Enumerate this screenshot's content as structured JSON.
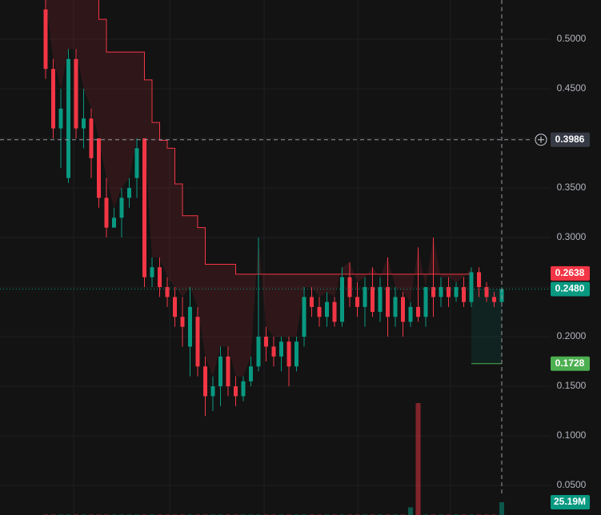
{
  "chart_data": {
    "type": "candlestick",
    "ylim": [
      0.0202,
      0.5395
    ],
    "yticks": [
      {
        "value": 0.05,
        "label": "0.0500"
      },
      {
        "value": 0.1,
        "label": "0.1000"
      },
      {
        "value": 0.15,
        "label": "0.1500"
      },
      {
        "value": 0.2,
        "label": "0.2000"
      },
      {
        "value": 0.25,
        "label": "0.2500"
      },
      {
        "value": 0.3,
        "label": "0.3000"
      },
      {
        "value": 0.35,
        "label": "0.3500"
      },
      {
        "value": 0.4,
        "label": "0.4000"
      },
      {
        "value": 0.45,
        "label": "0.4500"
      },
      {
        "value": 0.5,
        "label": "0.5000"
      }
    ],
    "grid": true,
    "up_color": "#089981",
    "down_color": "#f23645",
    "ohlc": [
      [
        0.53,
        0.54,
        0.46,
        0.47
      ],
      [
        0.47,
        0.48,
        0.4,
        0.41
      ],
      [
        0.41,
        0.45,
        0.37,
        0.43
      ],
      [
        0.36,
        0.49,
        0.355,
        0.48
      ],
      [
        0.48,
        0.49,
        0.4,
        0.41
      ],
      [
        0.41,
        0.45,
        0.39,
        0.42
      ],
      [
        0.42,
        0.43,
        0.36,
        0.38
      ],
      [
        0.4,
        0.4,
        0.33,
        0.34
      ],
      [
        0.34,
        0.36,
        0.3,
        0.31
      ],
      [
        0.31,
        0.33,
        0.31,
        0.32
      ],
      [
        0.32,
        0.35,
        0.3,
        0.34
      ],
      [
        0.34,
        0.36,
        0.33,
        0.35
      ],
      [
        0.36,
        0.4,
        0.34,
        0.39
      ],
      [
        0.4,
        0.4,
        0.25,
        0.26
      ],
      [
        0.26,
        0.28,
        0.25,
        0.27
      ],
      [
        0.27,
        0.28,
        0.24,
        0.25
      ],
      [
        0.25,
        0.26,
        0.23,
        0.24
      ],
      [
        0.24,
        0.25,
        0.21,
        0.22
      ],
      [
        0.22,
        0.24,
        0.19,
        0.21
      ],
      [
        0.19,
        0.25,
        0.16,
        0.23
      ],
      [
        0.22,
        0.23,
        0.16,
        0.17
      ],
      [
        0.17,
        0.18,
        0.12,
        0.14
      ],
      [
        0.14,
        0.16,
        0.125,
        0.15
      ],
      [
        0.15,
        0.19,
        0.13,
        0.18
      ],
      [
        0.18,
        0.19,
        0.14,
        0.15
      ],
      [
        0.15,
        0.16,
        0.13,
        0.14
      ],
      [
        0.14,
        0.16,
        0.135,
        0.155
      ],
      [
        0.155,
        0.18,
        0.15,
        0.17
      ],
      [
        0.17,
        0.3,
        0.165,
        0.2
      ],
      [
        0.2,
        0.21,
        0.175,
        0.19
      ],
      [
        0.19,
        0.2,
        0.17,
        0.18
      ],
      [
        0.18,
        0.2,
        0.165,
        0.195
      ],
      [
        0.195,
        0.2,
        0.15,
        0.17
      ],
      [
        0.17,
        0.2,
        0.165,
        0.195
      ],
      [
        0.2,
        0.25,
        0.19,
        0.24
      ],
      [
        0.24,
        0.25,
        0.22,
        0.23
      ],
      [
        0.23,
        0.24,
        0.21,
        0.22
      ],
      [
        0.22,
        0.245,
        0.21,
        0.235
      ],
      [
        0.235,
        0.24,
        0.21,
        0.215
      ],
      [
        0.215,
        0.27,
        0.21,
        0.26
      ],
      [
        0.26,
        0.275,
        0.23,
        0.24
      ],
      [
        0.24,
        0.255,
        0.22,
        0.23
      ],
      [
        0.23,
        0.26,
        0.21,
        0.25
      ],
      [
        0.25,
        0.27,
        0.22,
        0.225
      ],
      [
        0.225,
        0.26,
        0.215,
        0.25
      ],
      [
        0.25,
        0.28,
        0.2,
        0.22
      ],
      [
        0.22,
        0.25,
        0.21,
        0.24
      ],
      [
        0.24,
        0.245,
        0.2,
        0.215
      ],
      [
        0.215,
        0.235,
        0.21,
        0.23
      ],
      [
        0.23,
        0.29,
        0.215,
        0.22
      ],
      [
        0.22,
        0.25,
        0.21,
        0.25
      ],
      [
        0.25,
        0.3,
        0.22,
        0.24
      ],
      [
        0.24,
        0.26,
        0.23,
        0.25
      ],
      [
        0.25,
        0.26,
        0.23,
        0.24
      ],
      [
        0.24,
        0.255,
        0.235,
        0.25
      ],
      [
        0.25,
        0.26,
        0.23,
        0.235
      ],
      [
        0.235,
        0.27,
        0.23,
        0.265
      ],
      [
        0.265,
        0.27,
        0.24,
        0.25
      ],
      [
        0.25,
        0.255,
        0.235,
        0.24
      ],
      [
        0.24,
        0.245,
        0.23,
        0.235
      ],
      [
        0.235,
        0.25,
        0.23,
        0.248
      ]
    ],
    "volume": [
      1,
      1,
      1,
      1,
      1,
      1,
      1,
      1,
      1,
      1,
      1,
      1,
      1,
      1,
      1,
      1,
      1,
      1,
      1,
      1,
      1,
      1,
      1,
      1,
      1,
      1,
      1,
      1,
      1,
      1,
      1,
      1,
      1,
      1,
      1,
      1,
      1,
      1,
      1,
      1,
      1,
      1,
      1,
      1,
      1,
      1,
      1,
      1,
      15,
      220,
      1,
      1,
      1,
      1,
      1,
      1,
      1,
      1,
      1,
      1,
      25.19
    ],
    "volume_label": {
      "value": 25.19,
      "label": "25.19M"
    },
    "stop_line": [
      0.6,
      0.6,
      0.6,
      0.6,
      0.58,
      0.56,
      0.55,
      0.52,
      0.487,
      0.487,
      0.487,
      0.487,
      0.487,
      0.459,
      0.416,
      0.398,
      0.39,
      0.354,
      0.322,
      0.322,
      0.31,
      0.273,
      0.273,
      0.273,
      0.273,
      0.263,
      0.263,
      0.263,
      0.263,
      0.263,
      0.263,
      0.263,
      0.263,
      0.263,
      0.263,
      0.263,
      0.263,
      0.263,
      0.263,
      0.263,
      0.263,
      0.263,
      0.263,
      0.263,
      0.263,
      0.263,
      0.263,
      0.263,
      0.263,
      0.263,
      0.263,
      0.263,
      0.263,
      0.263,
      0.263,
      0.263,
      0.263,
      null,
      null,
      null,
      null
    ],
    "stop_line_color": "#f23645",
    "stop_price": 0.2638,
    "last_price": {
      "value": 0.248,
      "label": "0.2480"
    },
    "target_price": 0.1728,
    "crosshair_price": 0.3986
  }
}
